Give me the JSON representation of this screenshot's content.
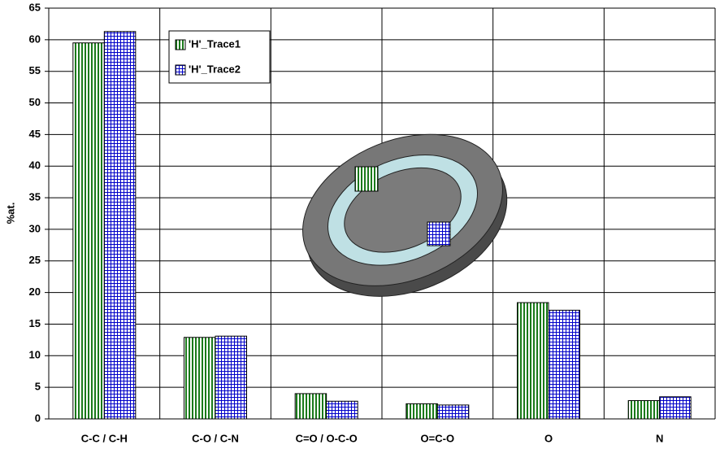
{
  "chart_data": {
    "type": "bar",
    "y_label": "%at.",
    "categories": [
      "C-C / C-H",
      "C-O / C-N",
      "C=O / O-C-O",
      "O=C-O",
      "O",
      "N"
    ],
    "series": [
      {
        "name": "'H'_Trace1",
        "color": "#1a7a1a",
        "values": [
          59.5,
          12.9,
          4.0,
          2.4,
          18.4,
          2.9
        ]
      },
      {
        "name": "'H'_Trace2",
        "color": "#0000c8",
        "values": [
          61.3,
          13.1,
          2.8,
          2.2,
          17.2,
          3.5
        ]
      }
    ],
    "ylim": [
      0,
      65
    ],
    "yticks": [
      0,
      5,
      10,
      15,
      20,
      25,
      30,
      35,
      40,
      45,
      50,
      55,
      60,
      65
    ],
    "grid": true
  }
}
